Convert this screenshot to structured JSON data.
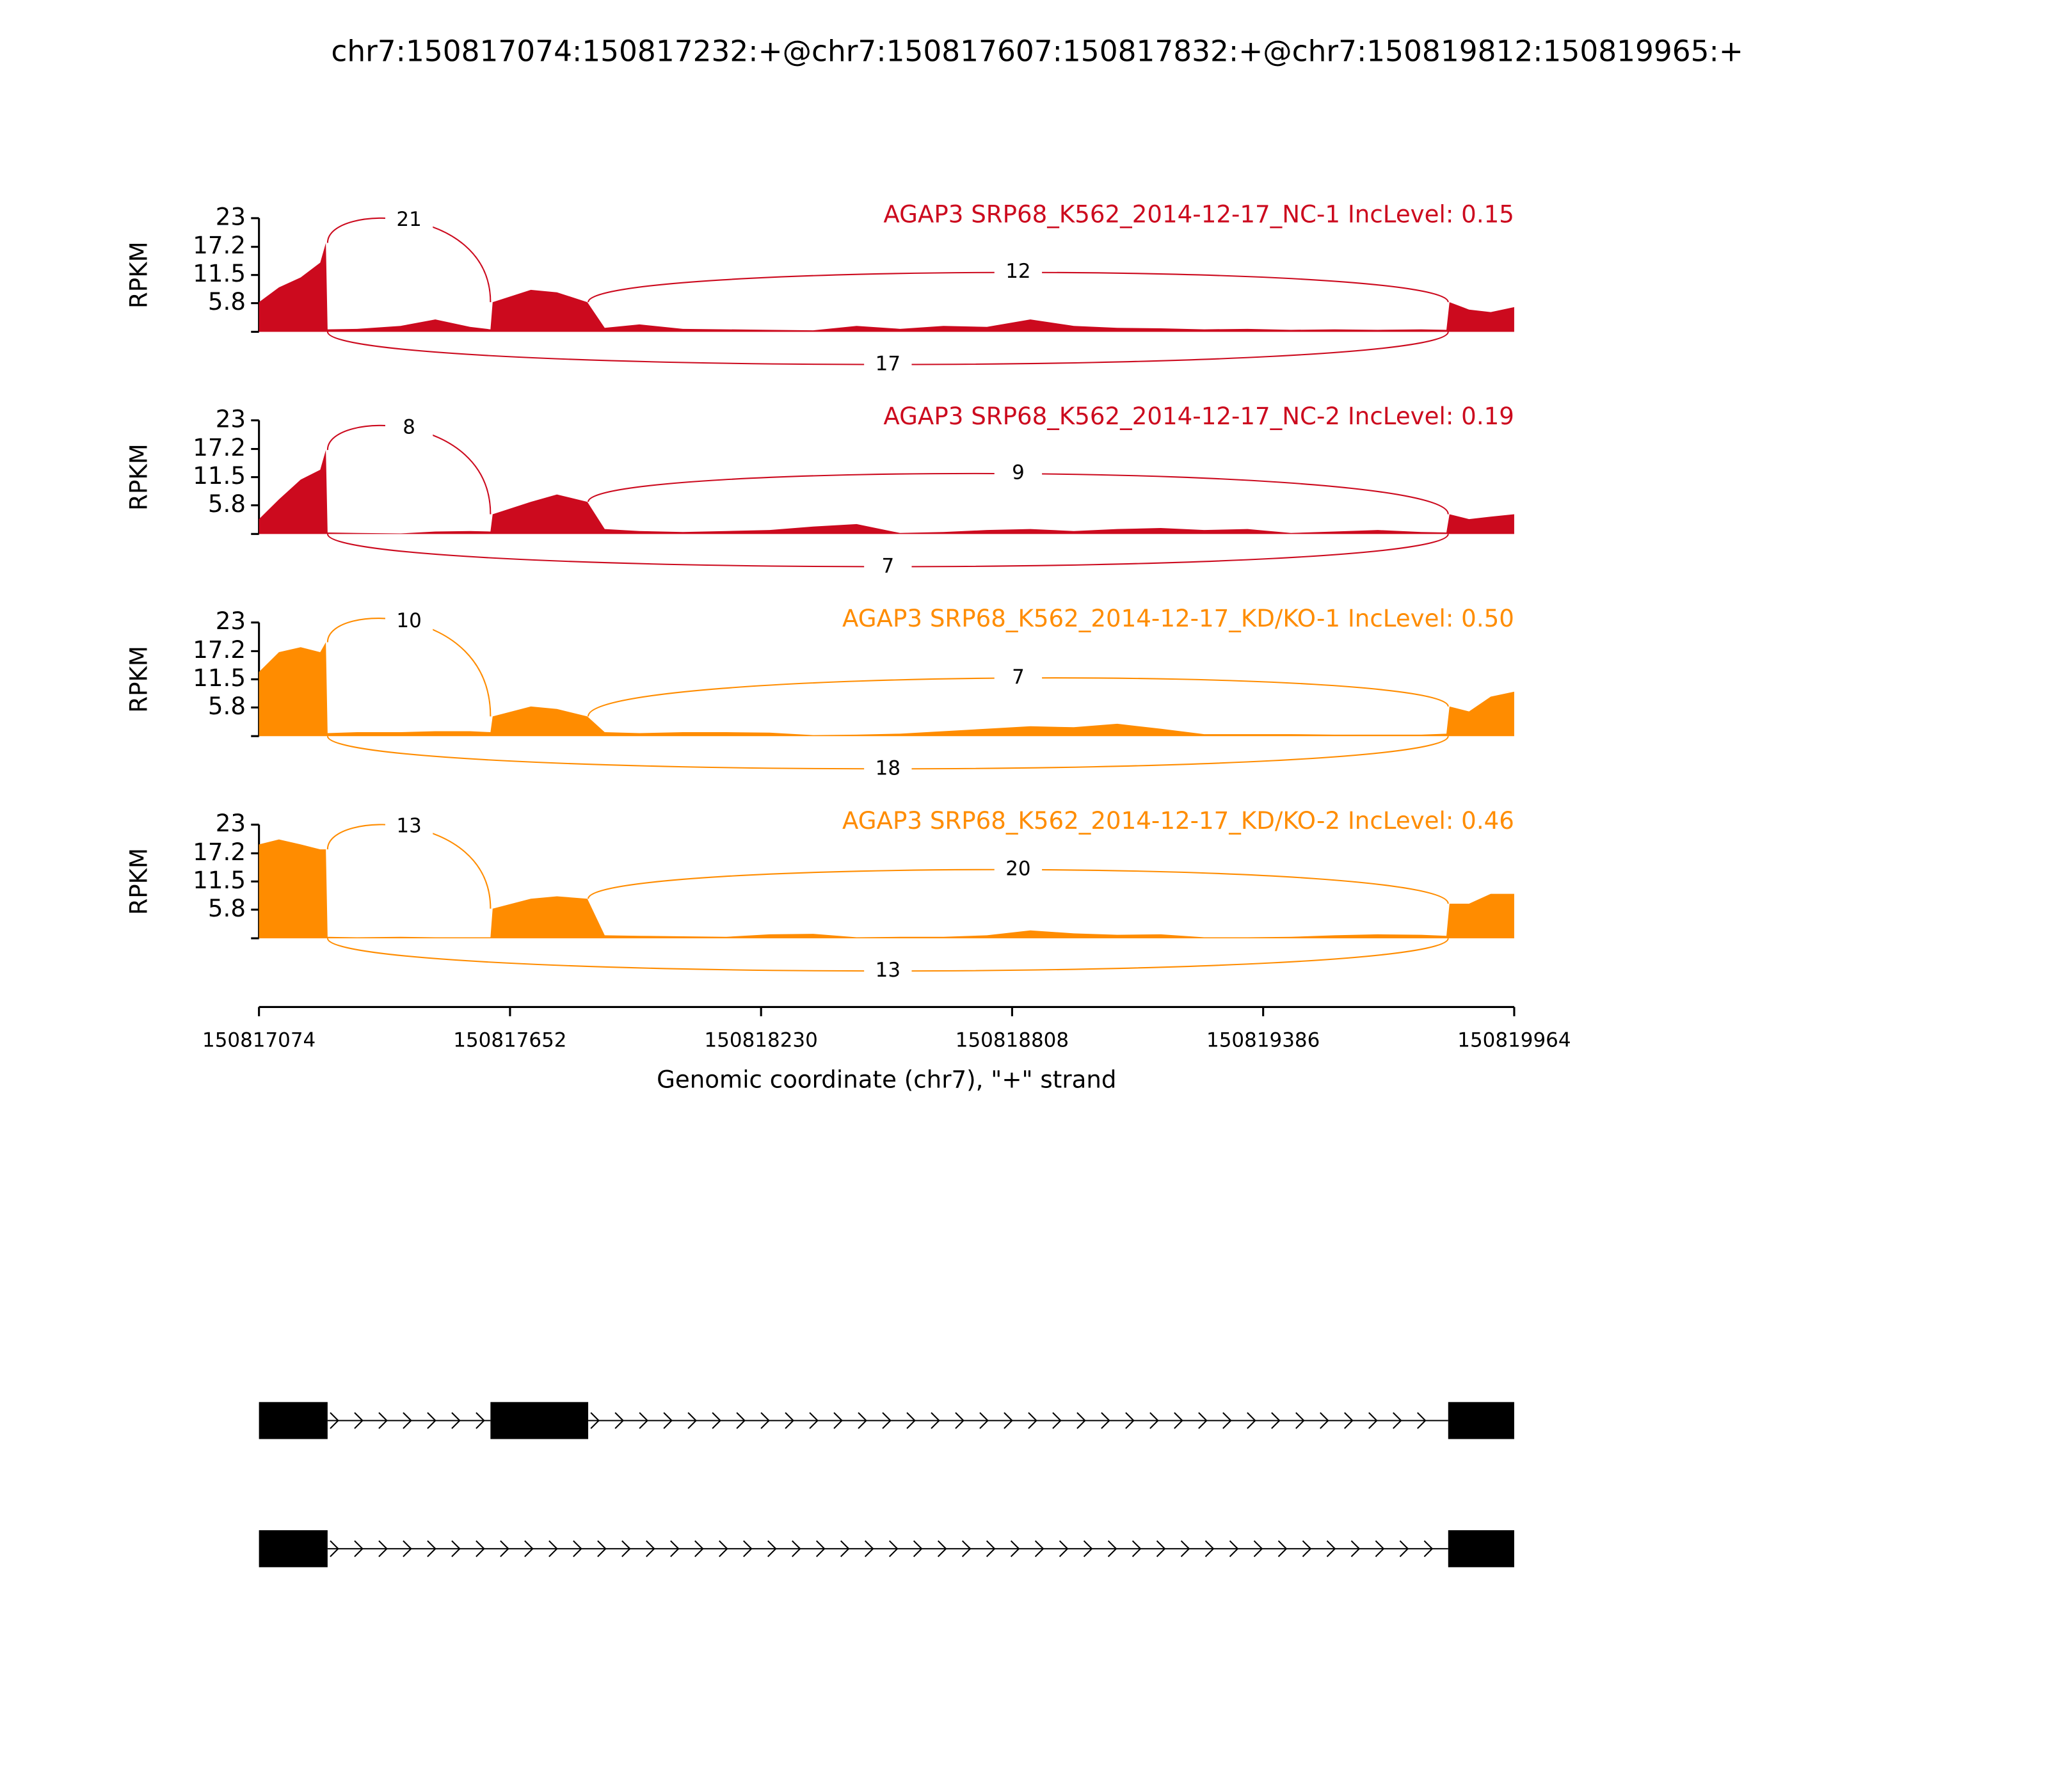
{
  "chart_data": {
    "type": "sashimi",
    "title": "chr7:150817074:150817232:+@chr7:150817607:150817832:+@chr7:150819812:150819965:+",
    "xlabel": "Genomic coordinate (chr7), \"+\" strand",
    "ylabel": "RPKM",
    "xlim": [
      150817074,
      150819964
    ],
    "xticks": [
      150817074,
      150817652,
      150818230,
      150818808,
      150819386,
      150819964
    ],
    "ylim": [
      0,
      23
    ],
    "yticks": [
      5.8,
      11.5,
      17.2,
      23
    ],
    "x": [
      150817074,
      150817120,
      150817170,
      150817215,
      150817228,
      150817232,
      150817300,
      150817400,
      150817480,
      150817560,
      150817607,
      150817612,
      150817700,
      150817760,
      150817830,
      150817870,
      150817950,
      150818050,
      150818150,
      150818250,
      150818350,
      150818450,
      150818550,
      150818650,
      150818750,
      150818850,
      150818950,
      150819050,
      150819150,
      150819250,
      150819350,
      150819450,
      150819550,
      150819650,
      150819750,
      150819808,
      150819815,
      150819860,
      150819910,
      150819964
    ],
    "tracks": [
      {
        "title": "AGAP3 SRP68_K562_2014-12-17_NC-1 IncLevel: 0.15",
        "color": "#cc0a1e",
        "values": [
          6,
          9,
          11,
          14,
          18,
          0.5,
          0.6,
          1.2,
          2.5,
          1,
          0.5,
          6,
          8.5,
          8,
          6,
          0.8,
          1.5,
          0.6,
          0.5,
          0.4,
          0.3,
          1.2,
          0.6,
          1.2,
          1,
          2.5,
          1.2,
          0.8,
          0.7,
          0.5,
          0.6,
          0.4,
          0.5,
          0.4,
          0.5,
          0.4,
          6,
          4.5,
          4,
          5
        ],
        "junctions": [
          {
            "start": 150817232,
            "end": 150817607,
            "count": 21
          },
          {
            "start": 150817832,
            "end": 150819812,
            "count": 12
          },
          {
            "start": 150817232,
            "end": 150819812,
            "count": 17
          }
        ]
      },
      {
        "title": "AGAP3 SRP68_K562_2014-12-17_NC-2 IncLevel: 0.19",
        "color": "#cc0a1e",
        "values": [
          3,
          7,
          11,
          13,
          17,
          0.3,
          0.2,
          0.1,
          0.5,
          0.6,
          0.5,
          4,
          6.5,
          8,
          6.5,
          1,
          0.6,
          0.4,
          0.6,
          0.8,
          1.5,
          2,
          0.2,
          0.4,
          0.8,
          1,
          0.6,
          1,
          1.2,
          0.8,
          1,
          0.2,
          0.5,
          0.8,
          0.4,
          0.3,
          4,
          3,
          3.5,
          4
        ],
        "junctions": [
          {
            "start": 150817232,
            "end": 150817607,
            "count": 8
          },
          {
            "start": 150817832,
            "end": 150819812,
            "count": 9
          },
          {
            "start": 150817232,
            "end": 150819812,
            "count": 7
          }
        ]
      },
      {
        "title": "AGAP3 SRP68_K562_2014-12-17_KD/KO-1 IncLevel: 0.50",
        "color": "#ff8c00",
        "values": [
          13,
          17,
          18,
          17,
          19,
          0.6,
          0.8,
          0.8,
          1,
          1,
          0.8,
          4,
          6,
          5.5,
          4,
          0.8,
          0.6,
          0.8,
          0.8,
          0.7,
          0.2,
          0.3,
          0.5,
          1,
          1.5,
          2,
          1.8,
          2.5,
          1.5,
          0.4,
          0.4,
          0.4,
          0.3,
          0.3,
          0.3,
          0.5,
          6,
          5,
          8,
          9
        ],
        "junctions": [
          {
            "start": 150817232,
            "end": 150817607,
            "count": 10
          },
          {
            "start": 150817832,
            "end": 150819812,
            "count": 7
          },
          {
            "start": 150817232,
            "end": 150819812,
            "count": 18
          }
        ]
      },
      {
        "title": "AGAP3 SRP68_K562_2014-12-17_KD/KO-2 IncLevel: 0.46",
        "color": "#ff8c00",
        "values": [
          19,
          20,
          19,
          18,
          18,
          0.3,
          0.2,
          0.3,
          0.2,
          0.2,
          0.2,
          6,
          8,
          8.5,
          8,
          0.6,
          0.5,
          0.4,
          0.3,
          0.8,
          0.9,
          0.2,
          0.3,
          0.3,
          0.6,
          1.6,
          1,
          0.7,
          0.8,
          0.2,
          0.2,
          0.3,
          0.6,
          0.8,
          0.7,
          0.5,
          7,
          7,
          9,
          9
        ],
        "junctions": [
          {
            "start": 150817232,
            "end": 150817607,
            "count": 13
          },
          {
            "start": 150817832,
            "end": 150819812,
            "count": 20
          },
          {
            "start": 150817232,
            "end": 150819812,
            "count": 13
          }
        ]
      }
    ],
    "isoforms": [
      {
        "exons": [
          [
            150817074,
            150817232
          ],
          [
            150817607,
            150817832
          ],
          [
            150819812,
            150819964
          ]
        ]
      },
      {
        "exons": [
          [
            150817074,
            150817232
          ],
          [
            150819812,
            150819964
          ]
        ]
      }
    ]
  }
}
